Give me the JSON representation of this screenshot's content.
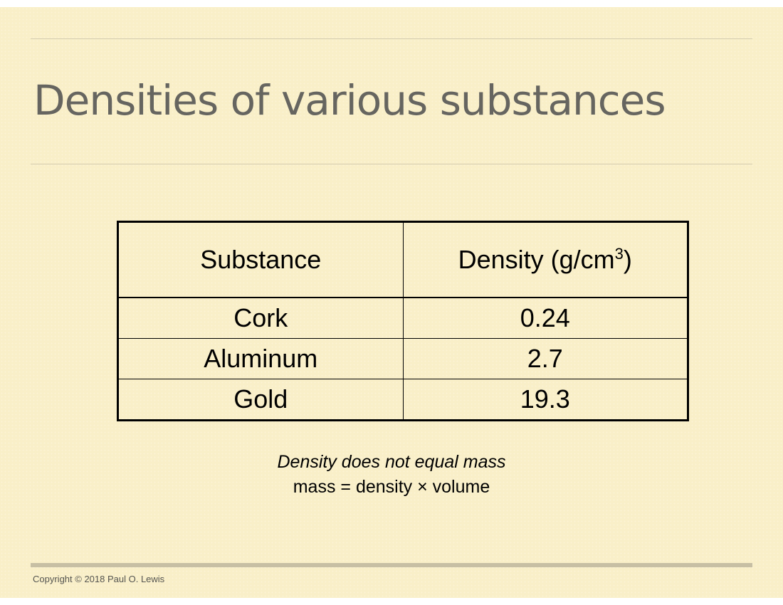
{
  "slide": {
    "title": "Densities of various substances",
    "table": {
      "headers": [
        "Substance",
        "Density (g/cm",
        "3",
        ")"
      ],
      "rows": [
        {
          "substance": "Cork",
          "density": "0.24"
        },
        {
          "substance": "Aluminum",
          "density": "2.7"
        },
        {
          "substance": "Gold",
          "density": "19.3"
        }
      ]
    },
    "note_italic": "Density does not equal mass",
    "formula": "mass = density × volume",
    "copyright": "Copyright © 2018 Paul O. Lewis"
  },
  "colors": {
    "background": "#f9efc8",
    "title": "#666560",
    "rule": "#d4ccb0"
  }
}
